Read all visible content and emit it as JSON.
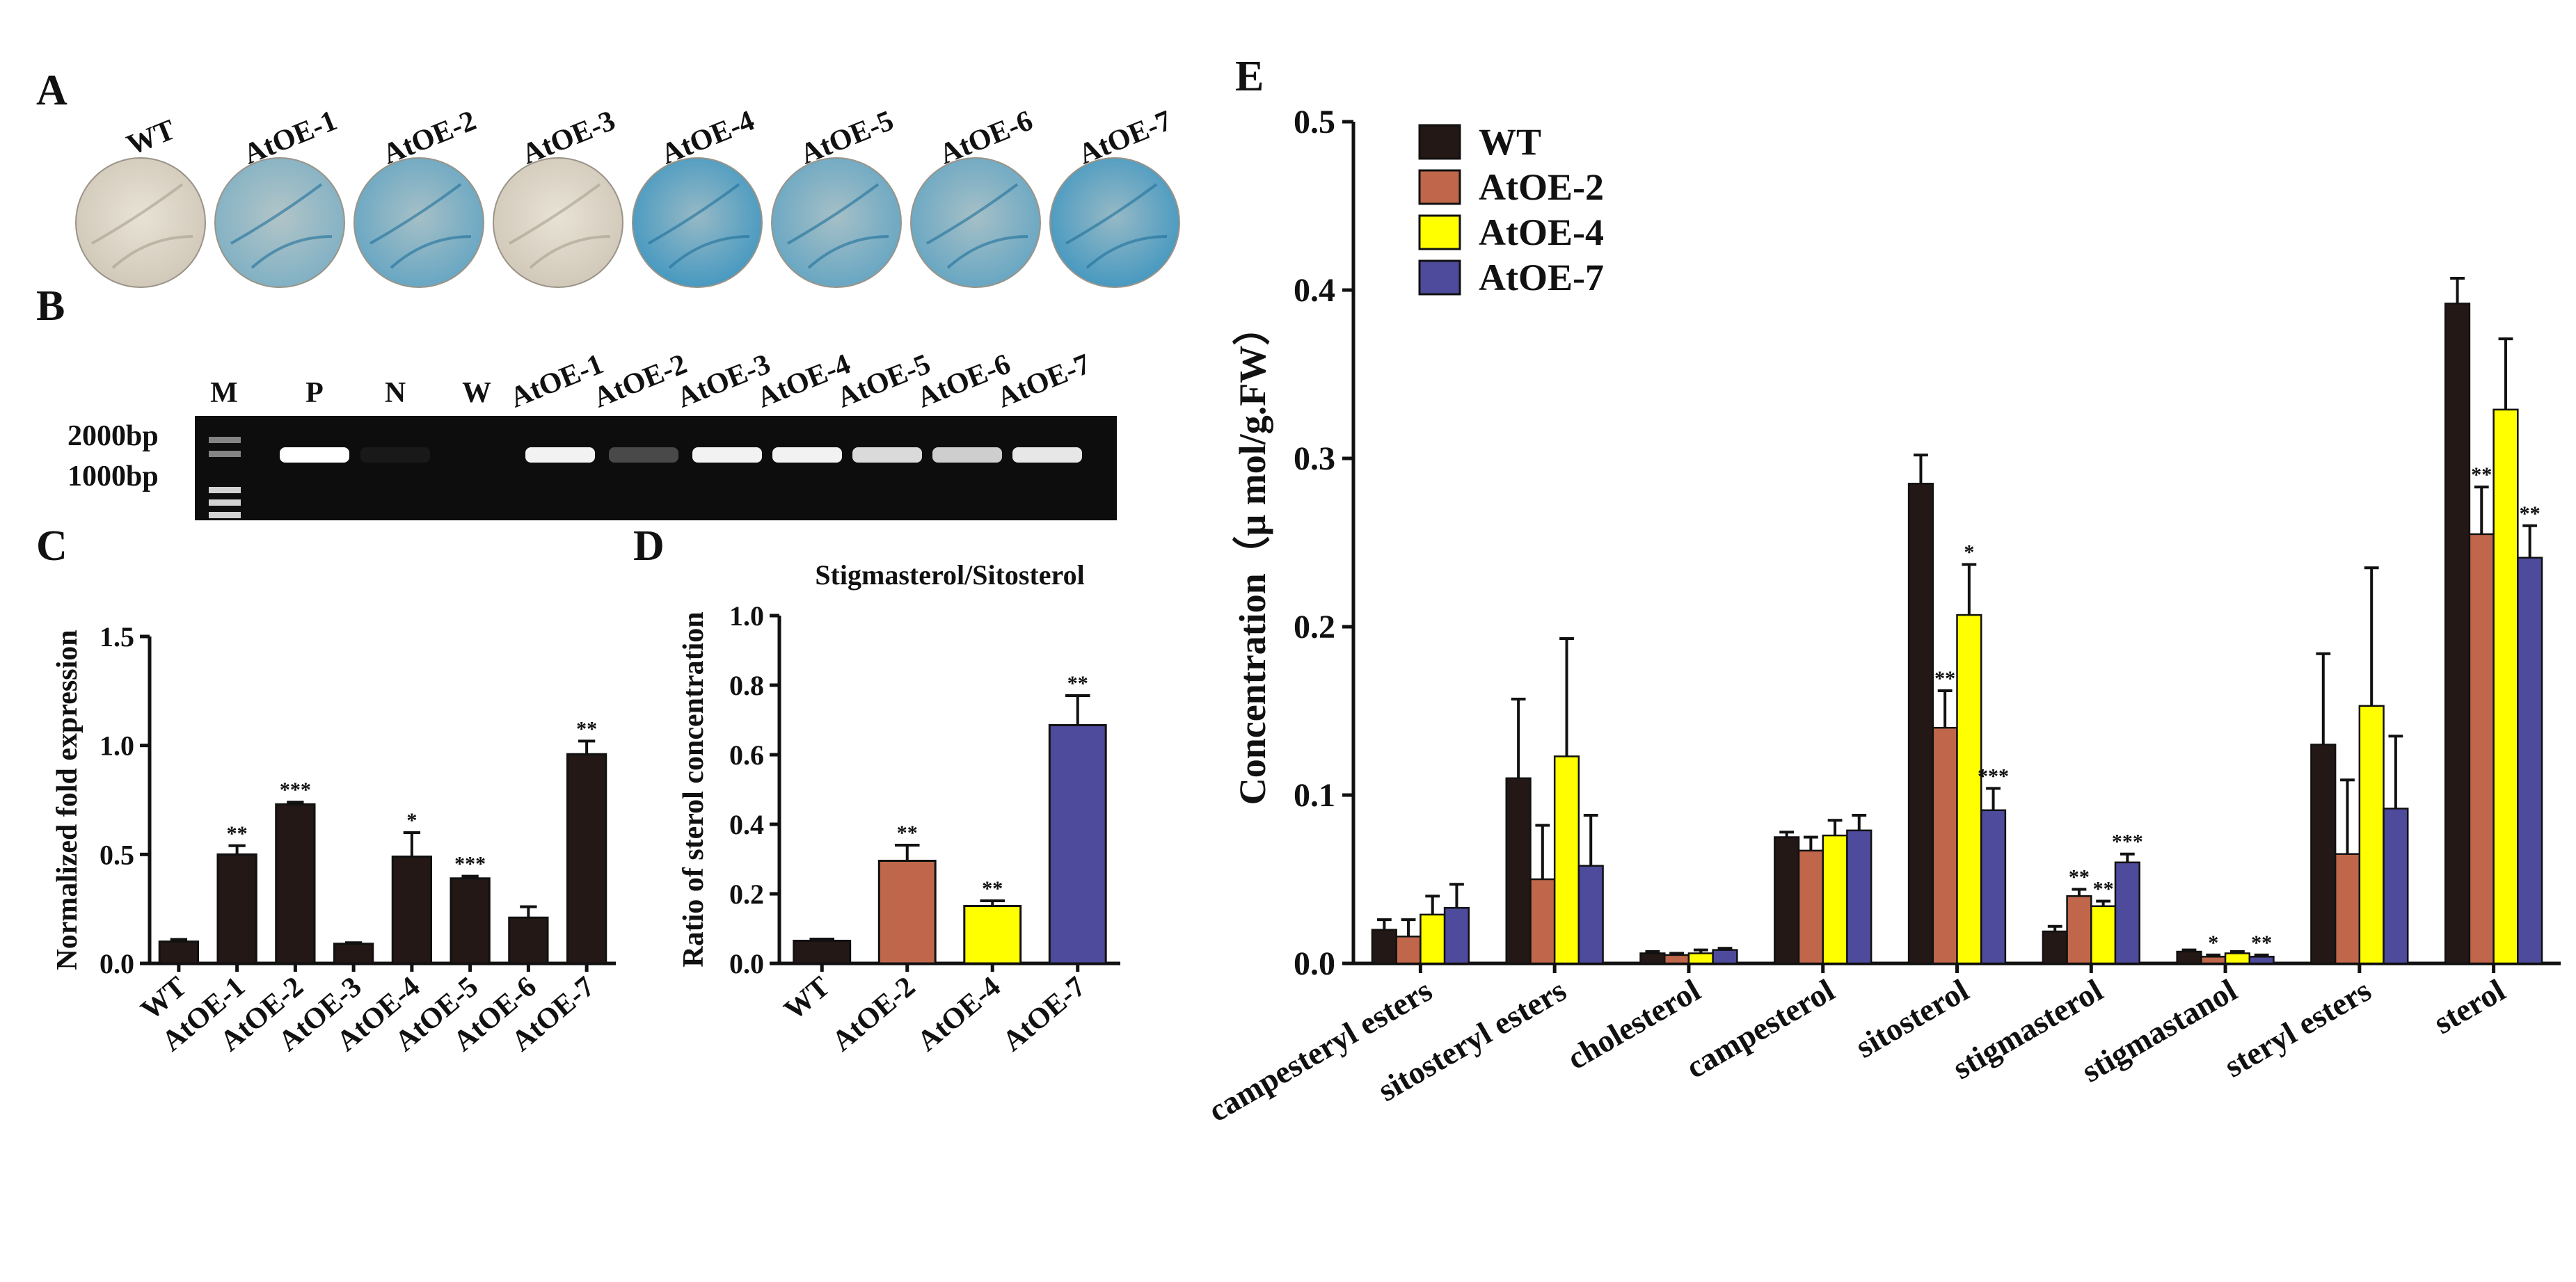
{
  "panels": {
    "a": {
      "letter": "A",
      "labels": [
        "WT",
        "AtOE-1",
        "AtOE-2",
        "AtOE-3",
        "AtOE-4",
        "AtOE-5",
        "AtOE-6",
        "AtOE-7"
      ],
      "stain": [
        "none",
        "light",
        "medium",
        "none",
        "strong",
        "medium",
        "medium",
        "strong"
      ],
      "colors": {
        "stain": "#2f8fbf",
        "leaf": "#cfc6b6"
      }
    },
    "b": {
      "letter": "B",
      "lane_labels": [
        "M",
        "P",
        "N",
        "W",
        "AtOE-1",
        "AtOE-2",
        "AtOE-3",
        "AtOE-4",
        "AtOE-5",
        "AtOE-6",
        "AtOE-7"
      ],
      "markers": [
        "2000bp",
        "1000bp"
      ],
      "band_intensity": [
        0,
        1,
        0.05,
        0,
        0.95,
        0.25,
        0.95,
        0.95,
        0.85,
        0.8,
        0.9
      ]
    },
    "c": {
      "letter": "C"
    },
    "d": {
      "letter": "D"
    },
    "e": {
      "letter": "E"
    }
  },
  "chart_data": [
    {
      "id": "C",
      "type": "bar",
      "title": "",
      "xlabel": "",
      "ylabel": "Normalized fold expression",
      "categories": [
        "WT",
        "AtOE-1",
        "AtOE-2",
        "AtOE-3",
        "AtOE-4",
        "AtOE-5",
        "AtOE-6",
        "AtOE-7"
      ],
      "values": [
        0.1,
        0.5,
        0.73,
        0.09,
        0.49,
        0.39,
        0.21,
        0.96
      ],
      "errors": [
        0.01,
        0.04,
        0.01,
        0.005,
        0.11,
        0.01,
        0.05,
        0.06
      ],
      "significance": [
        "",
        "**",
        "***",
        "",
        "*",
        "***",
        "",
        "**"
      ],
      "ylim": [
        0,
        1.5
      ],
      "yticks": [
        "0.0",
        "0.5",
        "1.0",
        "1.5"
      ],
      "color": "#231815"
    },
    {
      "id": "D",
      "type": "bar",
      "title": "Stigmasterol/Sitosterol",
      "xlabel": "",
      "ylabel": "Ratio of sterol concentration",
      "categories": [
        "WT",
        "AtOE-2",
        "AtOE-4",
        "AtOE-7"
      ],
      "values": [
        0.065,
        0.295,
        0.165,
        0.685
      ],
      "errors": [
        0.005,
        0.045,
        0.015,
        0.085
      ],
      "significance": [
        "",
        "**",
        "**",
        "**"
      ],
      "colors": [
        "#231815",
        "#c0664a",
        "#ffff00",
        "#4e4a9c"
      ],
      "ylim": [
        0,
        1.0
      ],
      "yticks": [
        "0.0",
        "0.2",
        "0.4",
        "0.6",
        "0.8",
        "1.0"
      ]
    },
    {
      "id": "E",
      "type": "bar",
      "title": "",
      "xlabel": "",
      "ylabel": "Concentration（μ mol/g.FW）",
      "categories": [
        "campesteryl esters",
        "sitosteryl esters",
        "cholesterol",
        "campesterol",
        "sitosterol",
        "stigmasterol",
        "stigmastanol",
        "steryl esters",
        "sterol"
      ],
      "series": [
        {
          "name": "WT",
          "color": "#231815",
          "values": [
            0.02,
            0.11,
            0.006,
            0.075,
            0.285,
            0.019,
            0.007,
            0.13,
            0.392
          ],
          "errors": [
            0.006,
            0.047,
            0.001,
            0.003,
            0.017,
            0.003,
            0.001,
            0.054,
            0.015
          ],
          "significance": [
            "",
            "",
            "",
            "",
            "",
            "",
            "",
            "",
            ""
          ]
        },
        {
          "name": "AtOE-2",
          "color": "#c0664a",
          "values": [
            0.016,
            0.05,
            0.005,
            0.067,
            0.14,
            0.04,
            0.004,
            0.065,
            0.255
          ],
          "errors": [
            0.01,
            0.032,
            0.001,
            0.008,
            0.022,
            0.004,
            0.001,
            0.044,
            0.028
          ],
          "significance": [
            "",
            "",
            "",
            "",
            "**",
            "**",
            "*",
            "",
            "**"
          ]
        },
        {
          "name": "AtOE-4",
          "color": "#ffff00",
          "values": [
            0.029,
            0.123,
            0.006,
            0.076,
            0.207,
            0.034,
            0.006,
            0.153,
            0.329
          ],
          "errors": [
            0.011,
            0.07,
            0.002,
            0.009,
            0.03,
            0.003,
            0.001,
            0.082,
            0.042
          ],
          "significance": [
            "",
            "",
            "",
            "",
            "*",
            "**",
            "",
            "",
            ""
          ]
        },
        {
          "name": "AtOE-7",
          "color": "#4e4a9c",
          "values": [
            0.033,
            0.058,
            0.008,
            0.079,
            0.091,
            0.06,
            0.004,
            0.092,
            0.241
          ],
          "errors": [
            0.014,
            0.03,
            0.001,
            0.009,
            0.013,
            0.005,
            0.001,
            0.043,
            0.019
          ],
          "significance": [
            "",
            "",
            "",
            "",
            "***",
            "***",
            "**",
            "",
            "**"
          ]
        }
      ],
      "ylim": [
        0,
        0.5
      ],
      "yticks": [
        "0.0",
        "0.1",
        "0.2",
        "0.3",
        "0.4",
        "0.5"
      ],
      "legend_position": "top-left"
    }
  ]
}
